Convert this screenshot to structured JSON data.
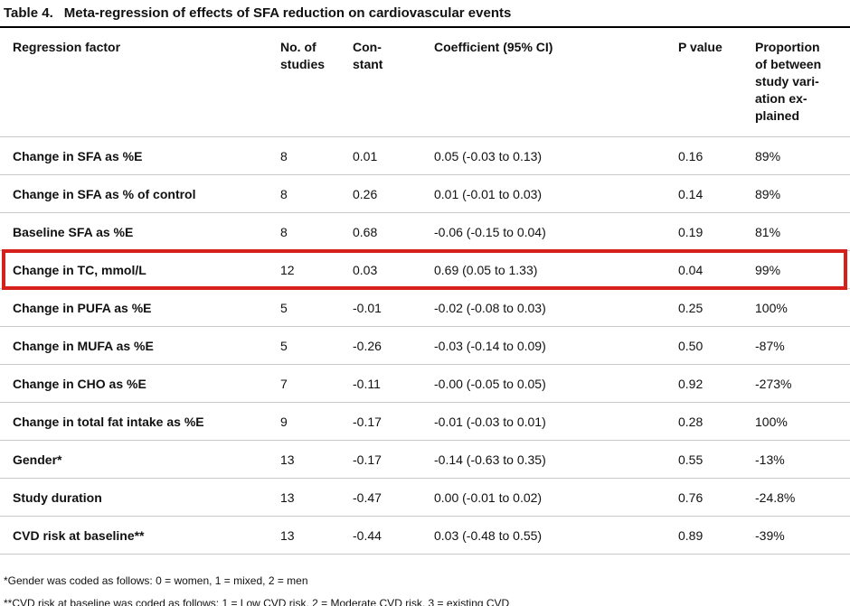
{
  "title": {
    "label": "Table 4.",
    "text": "Meta-regression of effects of SFA reduction on cardiovascular events"
  },
  "table": {
    "headers": {
      "factor": "Regression factor",
      "studies": "No. of\nstudies",
      "constant": "Con-\nstant",
      "coefficient": "Coefficient (95% CI)",
      "p_value": "P value",
      "proportion": "Proportion\nof between\nstudy vari-\nation ex-\nplained"
    },
    "rows": [
      {
        "factor": "Change in SFA as %E",
        "studies": "8",
        "constant": "0.01",
        "coefficient": "0.05 (-0.03 to 0.13)",
        "p_value": "0.16",
        "proportion": "89%"
      },
      {
        "factor": "Change in SFA as % of control",
        "studies": "8",
        "constant": "0.26",
        "coefficient": "0.01 (-0.01 to 0.03)",
        "p_value": "0.14",
        "proportion": "89%"
      },
      {
        "factor": "Baseline SFA as %E",
        "studies": "8",
        "constant": "0.68",
        "coefficient": "-0.06 (-0.15 to 0.04)",
        "p_value": "0.19",
        "proportion": "81%"
      },
      {
        "factor": "Change in TC, mmol/L",
        "studies": "12",
        "constant": "0.03",
        "coefficient": "0.69 (0.05 to 1.33)",
        "p_value": "0.04",
        "proportion": "99%",
        "highlighted": true
      },
      {
        "factor": "Change in PUFA as %E",
        "studies": "5",
        "constant": "-0.01",
        "coefficient": "-0.02 (-0.08 to 0.03)",
        "p_value": "0.25",
        "proportion": "100%"
      },
      {
        "factor": "Change in MUFA as %E",
        "studies": "5",
        "constant": "-0.26",
        "coefficient": "-0.03 (-0.14 to 0.09)",
        "p_value": "0.50",
        "proportion": "-87%"
      },
      {
        "factor": "Change in CHO as %E",
        "studies": "7",
        "constant": "-0.11",
        "coefficient": "-0.00 (-0.05 to 0.05)",
        "p_value": "0.92",
        "proportion": "-273%"
      },
      {
        "factor": "Change in total fat intake as %E",
        "studies": "9",
        "constant": "-0.17",
        "coefficient": "-0.01 (-0.03 to 0.01)",
        "p_value": "0.28",
        "proportion": "100%"
      },
      {
        "factor": "Gender*",
        "studies": "13",
        "constant": "-0.17",
        "coefficient": "-0.14 (-0.63 to 0.35)",
        "p_value": "0.55",
        "proportion": "-13%"
      },
      {
        "factor": "Study duration",
        "studies": "13",
        "constant": "-0.47",
        "coefficient": "0.00 (-0.01 to 0.02)",
        "p_value": "0.76",
        "proportion": "-24.8%"
      },
      {
        "factor": "CVD risk at baseline**",
        "studies": "13",
        "constant": "-0.44",
        "coefficient": "0.03 (-0.48 to 0.55)",
        "p_value": "0.89",
        "proportion": "-39%"
      }
    ]
  },
  "footnotes": [
    "*Gender was coded as follows: 0 = women, 1 = mixed, 2 = men",
    "**CVD risk at baseline was coded as follows: 1 = Low CVD risk, 2 = Moderate CVD risk, 3 = existing CVD"
  ],
  "colors": {
    "highlight_red": "#d6201b",
    "title_rule": "#000000",
    "row_line": "#c9c9c9",
    "text": "#111111"
  }
}
